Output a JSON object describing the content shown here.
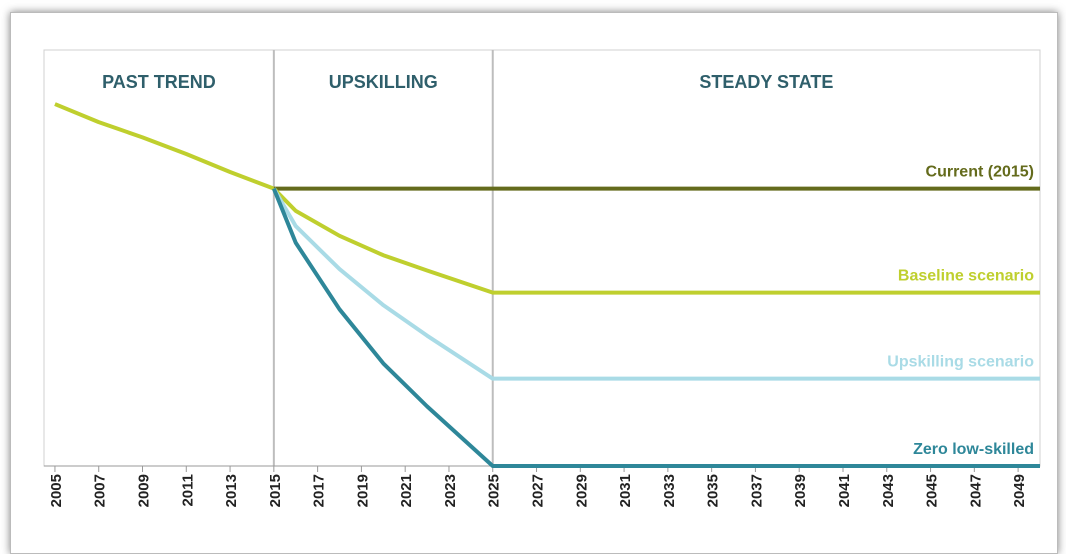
{
  "chart_data": {
    "type": "line",
    "xlim": [
      2004.5,
      2050
    ],
    "ylim": [
      0,
      30
    ],
    "xticks": [
      2005,
      2007,
      2009,
      2011,
      2013,
      2015,
      2017,
      2019,
      2021,
      2023,
      2025,
      2027,
      2029,
      2031,
      2033,
      2035,
      2037,
      2039,
      2041,
      2043,
      2045,
      2047,
      2049
    ],
    "dividers": [
      2015,
      2025
    ],
    "sections": [
      "PAST TREND",
      "UPSKILLING",
      "STEADY STATE"
    ],
    "series": [
      {
        "color": "#bfcf2e",
        "x": [
          2005,
          2007,
          2009,
          2011,
          2013,
          2015
        ],
        "values": [
          26.1,
          24.8,
          23.7,
          22.5,
          21.2,
          20
        ]
      },
      {
        "name": "Current (2015)",
        "color": "#646b1c",
        "x": [
          2015,
          2050
        ],
        "values": [
          20,
          20
        ]
      },
      {
        "name": "Baseline scenario",
        "color": "#bfcf2e",
        "x": [
          2015,
          2016,
          2018,
          2020,
          2022,
          2025,
          2050
        ],
        "values": [
          20,
          18.4,
          16.6,
          15.2,
          14.1,
          12.5,
          12.5
        ]
      },
      {
        "name": "Upskilling scenario",
        "color": "#a9dbe6",
        "x": [
          2015,
          2016,
          2018,
          2020,
          2022,
          2025,
          2050
        ],
        "values": [
          20,
          17.3,
          14.2,
          11.6,
          9.4,
          6.3,
          6.3
        ]
      },
      {
        "name": "Zero low-skilled",
        "color": "#2e8799",
        "x": [
          2015,
          2016,
          2018,
          2020,
          2022,
          2025,
          2050
        ],
        "values": [
          20,
          16.1,
          11.3,
          7.4,
          4.3,
          0,
          0
        ]
      }
    ]
  }
}
